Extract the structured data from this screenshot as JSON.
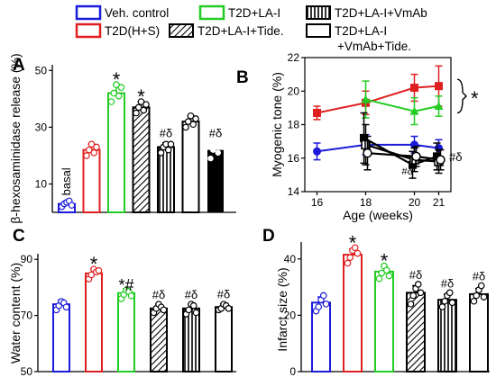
{
  "legend": [
    {
      "label": "Veh. control",
      "color": "#1a1adb",
      "pattern": "none"
    },
    {
      "label": "T2D(H+S)",
      "color": "#e02020",
      "pattern": "none"
    },
    {
      "label": "T2D+LA-I",
      "color": "#22cc22",
      "pattern": "none"
    },
    {
      "label": "T2D+LA-I+Tide.",
      "color": "#000000",
      "pattern": "diagonal"
    },
    {
      "label": "T2D+LA-I+VmAb",
      "color": "#000000",
      "pattern": "vertical"
    },
    {
      "label": "T2D+LA-I",
      "label2": "+VmAb+Tide.",
      "color": "#000000",
      "pattern": "none"
    }
  ],
  "chart_data": [
    {
      "panel": "A",
      "type": "bar",
      "ylabel": "β-hexosaminidase release (%)",
      "ylim": [
        0,
        52
      ],
      "yticks": [
        10,
        30,
        50
      ],
      "first_bar_label": "basal",
      "bars": [
        {
          "value": 3,
          "err": 1,
          "points": [
            2,
            3,
            3.5,
            4,
            2.5
          ]
        },
        {
          "value": 22,
          "err": 2,
          "points": [
            20,
            22,
            24,
            21,
            23
          ]
        },
        {
          "value": 42,
          "err": 3,
          "points": [
            39,
            42,
            45,
            41,
            44
          ],
          "mark": "*"
        },
        {
          "value": 37,
          "err": 2,
          "points": [
            35,
            37,
            39,
            36,
            38
          ],
          "mark": "*"
        },
        {
          "value": 23,
          "err": 1.5,
          "points": [
            21,
            23,
            24,
            22,
            24
          ],
          "mark": "#δ"
        },
        {
          "value": 32,
          "err": 2,
          "points": [
            30,
            32,
            34,
            31,
            33
          ]
        },
        {
          "value": 22,
          "err": 2.5,
          "points": [
            19,
            22,
            24,
            21,
            23
          ],
          "mark": "#δ"
        }
      ]
    },
    {
      "panel": "B",
      "type": "line",
      "xlabel": "Age (weeks)",
      "ylabel": "Myogenic tone (%)",
      "xlim": [
        15.5,
        21.5
      ],
      "ylim": [
        14,
        22
      ],
      "xticks": [
        16,
        18,
        20,
        21
      ],
      "yticks": [
        14,
        16,
        18,
        20,
        22
      ],
      "bracket_mark": "*",
      "end_mark": "#δ",
      "series": [
        {
          "color": "#1a1adb",
          "marker": "circle",
          "x": [
            16,
            18,
            20,
            21
          ],
          "y": [
            16.4,
            16.8,
            16.8,
            16.6
          ],
          "err": [
            0.5,
            0.6,
            0.5,
            0.5
          ]
        },
        {
          "color": "#e02020",
          "marker": "square",
          "x": [
            16,
            18,
            20,
            21
          ],
          "y": [
            18.7,
            19.3,
            20.2,
            20.3
          ],
          "err": [
            0.4,
            0.7,
            0.8,
            1.2
          ]
        },
        {
          "color": "#22cc22",
          "marker": "triangle",
          "x": [
            16,
            18,
            20,
            21
          ],
          "y": [
            null,
            19.5,
            18.8,
            19.1
          ],
          "err": [
            0,
            1.1,
            0.8,
            0.6
          ]
        },
        {
          "color": "#000000",
          "marker": "square",
          "x": [
            18,
            20,
            21
          ],
          "y": [
            17.2,
            15.6,
            16.1
          ],
          "err": [
            1.5,
            0.8,
            0.8
          ]
        },
        {
          "color": "#000000",
          "marker": "square-hatched",
          "x": [
            18,
            20,
            21
          ],
          "y": [
            16.8,
            15.9,
            15.8
          ],
          "err": [
            1.2,
            0.7,
            0.7
          ]
        },
        {
          "color": "#000000",
          "marker": "circle-open",
          "x": [
            18,
            20,
            21
          ],
          "y": [
            16.3,
            16.1,
            15.9
          ],
          "err": [
            1.0,
            0.6,
            0.6
          ]
        }
      ]
    },
    {
      "panel": "C",
      "type": "bar",
      "ylabel": "Water content (%)",
      "ylim": [
        50,
        92
      ],
      "yticks": [
        50,
        70,
        90
      ],
      "bars": [
        {
          "value": 74,
          "err": 1.5,
          "points": [
            72,
            73.5,
            75,
            74.5,
            73
          ]
        },
        {
          "value": 85,
          "err": 1.5,
          "points": [
            83,
            84.5,
            86.5,
            85.5,
            86
          ]
        },
        {
          "value": 78,
          "err": 1.5,
          "points": [
            76,
            77.5,
            79,
            78.5,
            77
          ]
        },
        {
          "value": 72.5,
          "err": 1.5,
          "points": [
            71,
            72.5,
            74,
            73,
            72
          ]
        },
        {
          "value": 72.5,
          "err": 1.5,
          "points": [
            70.5,
            72,
            74,
            73.5,
            71
          ]
        },
        {
          "value": 73,
          "err": 1.2,
          "points": [
            72,
            72.5,
            74,
            73.5,
            72.5
          ]
        }
      ],
      "marks": [
        "",
        "*",
        "*#",
        "#δ",
        "#δ",
        "#δ"
      ]
    },
    {
      "panel": "D",
      "type": "bar",
      "ylabel": "Infarct size (%)",
      "ylim": [
        0,
        46
      ],
      "yticks": [
        0,
        20,
        40
      ],
      "bars": [
        {
          "value": 24.5,
          "err": 2,
          "points": [
            21.5,
            23,
            25.5,
            27,
            24
          ]
        },
        {
          "value": 41.5,
          "err": 2,
          "points": [
            38.5,
            40.5,
            43,
            44,
            42
          ]
        },
        {
          "value": 35.5,
          "err": 2,
          "points": [
            33,
            35,
            37.5,
            36,
            34
          ]
        },
        {
          "value": 28,
          "err": 2.5,
          "points": [
            24,
            27,
            29.5,
            31,
            28
          ]
        },
        {
          "value": 25.5,
          "err": 2,
          "points": [
            23,
            25,
            27,
            28,
            24.5
          ]
        },
        {
          "value": 27.5,
          "err": 2,
          "points": [
            25,
            27,
            29,
            30.5,
            26.5
          ]
        }
      ],
      "marks": [
        "",
        "*",
        "*",
        "#δ",
        "#δ",
        "#δ"
      ]
    }
  ]
}
